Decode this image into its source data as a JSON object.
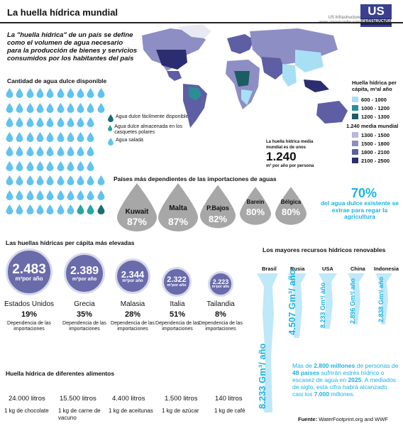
{
  "header": {
    "title": "La huella hídrica mundial",
    "source_line1": "US Infrastructure",
    "source_line2": "www.americanfm.com",
    "logo_main": "US",
    "logo_sub": "INFRASTRUCTURE"
  },
  "intro": "La \"huella hídrica\" de un país se define como el volumen de agua necesario para la producción de bienes y servicios consumidos por los habitantes del país",
  "water_section": {
    "title": "Cantidad de agua dulce disponible",
    "legend": [
      {
        "label": "Agua dulce fácilmente disponible",
        "color": "#1a6f74"
      },
      {
        "label": "Agua dulce almacenada en los casquetes polares",
        "color": "#2aa6a0"
      },
      {
        "label": "Agua salada",
        "color": "#62c3ee"
      }
    ]
  },
  "map_legend": {
    "title": "Huella hídrica per cápita, m³al año",
    "items_low": [
      {
        "label": "600 - 1000",
        "color": "#a9dff5"
      },
      {
        "label": "1000 - 1200",
        "color": "#2a8f95"
      },
      {
        "label": "1200 - 1300",
        "color": "#1a5d63"
      }
    ],
    "median": "1.240 media mundial",
    "items_high": [
      {
        "label": "1300 - 1500",
        "color": "#b7b8dc"
      },
      {
        "label": "1500 - 1800",
        "color": "#8d8ec4"
      },
      {
        "label": "1800 - 2100",
        "color": "#5d5ea4"
      },
      {
        "label": "2100 - 2500",
        "color": "#2c2d70"
      }
    ]
  },
  "world_mean": {
    "line1": "La huella hídrica media",
    "line2": "mundial es de unos",
    "value": "1.240",
    "unit": "m³ por año por persona"
  },
  "imports": {
    "title": "Países más dependientes de las importaciones de aguas",
    "countries": [
      {
        "name": "Kuwait",
        "pct": "87%"
      },
      {
        "name": "Malta",
        "pct": "87%"
      },
      {
        "name": "P.Bajos",
        "pct": "82%"
      },
      {
        "name": "Barein",
        "pct": "80%"
      },
      {
        "name": "Bélgica",
        "pct": "80%"
      }
    ],
    "agri_pct": "70%",
    "agri_text": "del agua dulce existente se extrae para regar la agricultura"
  },
  "per_capita": {
    "title": "Las huellas hídricas per cápita más elevadas",
    "unit": "m³por año",
    "dep_label": "Dependencia de las importaciones",
    "countries": [
      {
        "name": "Estados Unidos",
        "value": "2.483",
        "pct": "19%"
      },
      {
        "name": "Grecia",
        "value": "2.389",
        "pct": "35%"
      },
      {
        "name": "Malasia",
        "value": "2.344",
        "pct": "28%"
      },
      {
        "name": "Italia",
        "value": "2.322",
        "pct": "51%"
      },
      {
        "name": "Tailandia",
        "value": "2.223",
        "pct": "8%"
      }
    ]
  },
  "renewables": {
    "title": "Los mayores recursos hídricos renovables",
    "countries": [
      {
        "name": "Brasil",
        "value": "8.233 Gm³/ año"
      },
      {
        "name": "Rusia",
        "value": "4.507 Gm³/ año"
      },
      {
        "name": "USA",
        "value": "8.233 Gm³/ año"
      },
      {
        "name": "China",
        "value": "2.896 Gm³/ año"
      },
      {
        "name": "Indonesia",
        "value": "2.838 Gm³/ año"
      }
    ],
    "note": {
      "p1": "Más de ",
      "b1": "2.800 millones",
      "p2": " de personas de ",
      "b2": "48 países",
      "p3": " sufrirán estrés hídrico o escasez de agua en ",
      "b3": "2025",
      "p4": ". A mediados de siglo, esta cifra habrá alcanzado casi los ",
      "b4": "7.000",
      "p5": " millones."
    }
  },
  "food": {
    "title": "Huella hídrica de diferentes alimentos",
    "items": [
      {
        "value": "24.000 litros",
        "label": "1 kg de chocolate"
      },
      {
        "value": "15.500 litros",
        "label": "1 kg de carne de vacuno"
      },
      {
        "value": "4.400 litros",
        "label": "1 kg de aceitunas"
      },
      {
        "value": "1.500 litros",
        "label": "1 kg de azúcar"
      },
      {
        "value": "140 litros",
        "label": "1 kg de café"
      }
    ]
  },
  "footer": {
    "label": "Fuente:",
    "value": "WaterFootprint.org and WWF"
  }
}
